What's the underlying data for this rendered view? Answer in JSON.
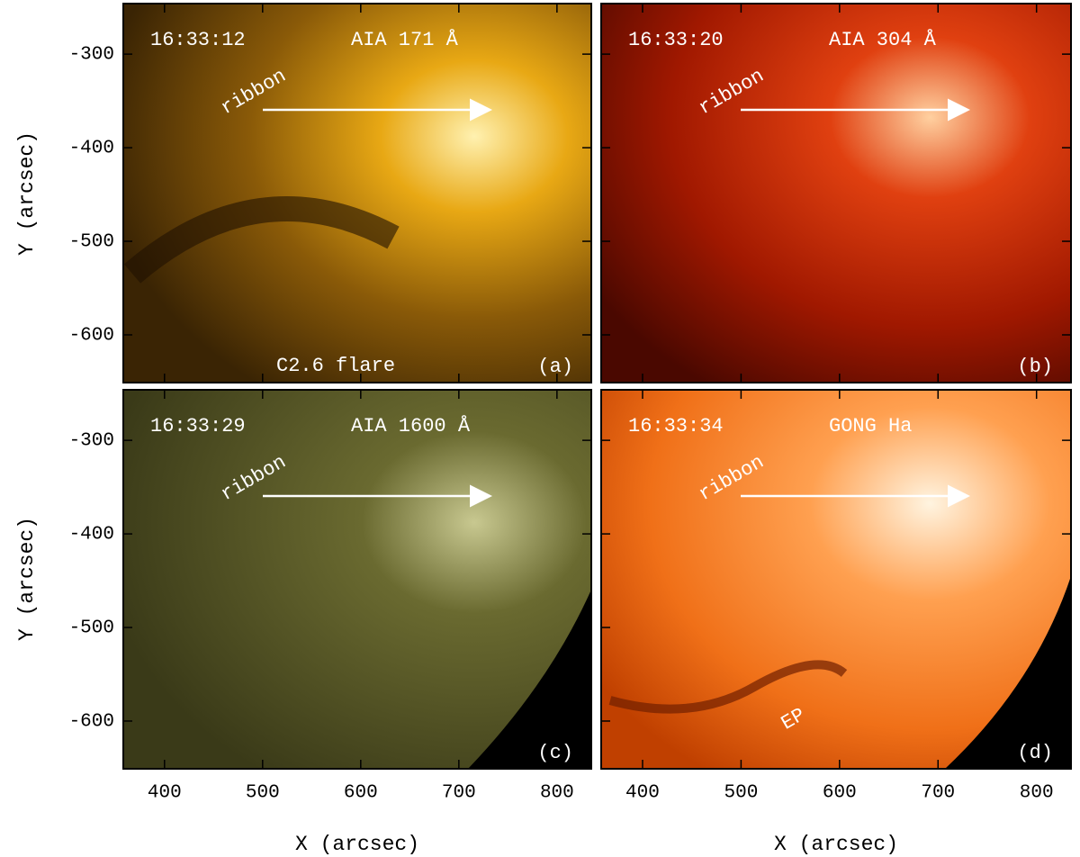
{
  "axes": {
    "x_label": "X (arcsec)",
    "y_label": "Y (arcsec)",
    "xlim": [
      358,
      835
    ],
    "ylim": [
      -651,
      -246
    ],
    "xticks": [
      400,
      500,
      600,
      700,
      800
    ],
    "yticks": [
      -300,
      -400,
      -500,
      -600
    ]
  },
  "panels": [
    {
      "time": "16:33:12",
      "instrument": "AIA 171 Å",
      "letter": "(a)",
      "annotations": [
        "ribbon",
        "C2.6 flare"
      ]
    },
    {
      "time": "16:33:20",
      "instrument": "AIA 304 Å",
      "letter": "(b)",
      "annotations": [
        "ribbon"
      ]
    },
    {
      "time": "16:33:29",
      "instrument": "AIA 1600 Å",
      "letter": "(c)",
      "annotations": [
        "ribbon"
      ]
    },
    {
      "time": "16:33:34",
      "instrument": "GONG Ha",
      "letter": "(d)",
      "annotations": [
        "ribbon",
        "EP"
      ]
    }
  ]
}
